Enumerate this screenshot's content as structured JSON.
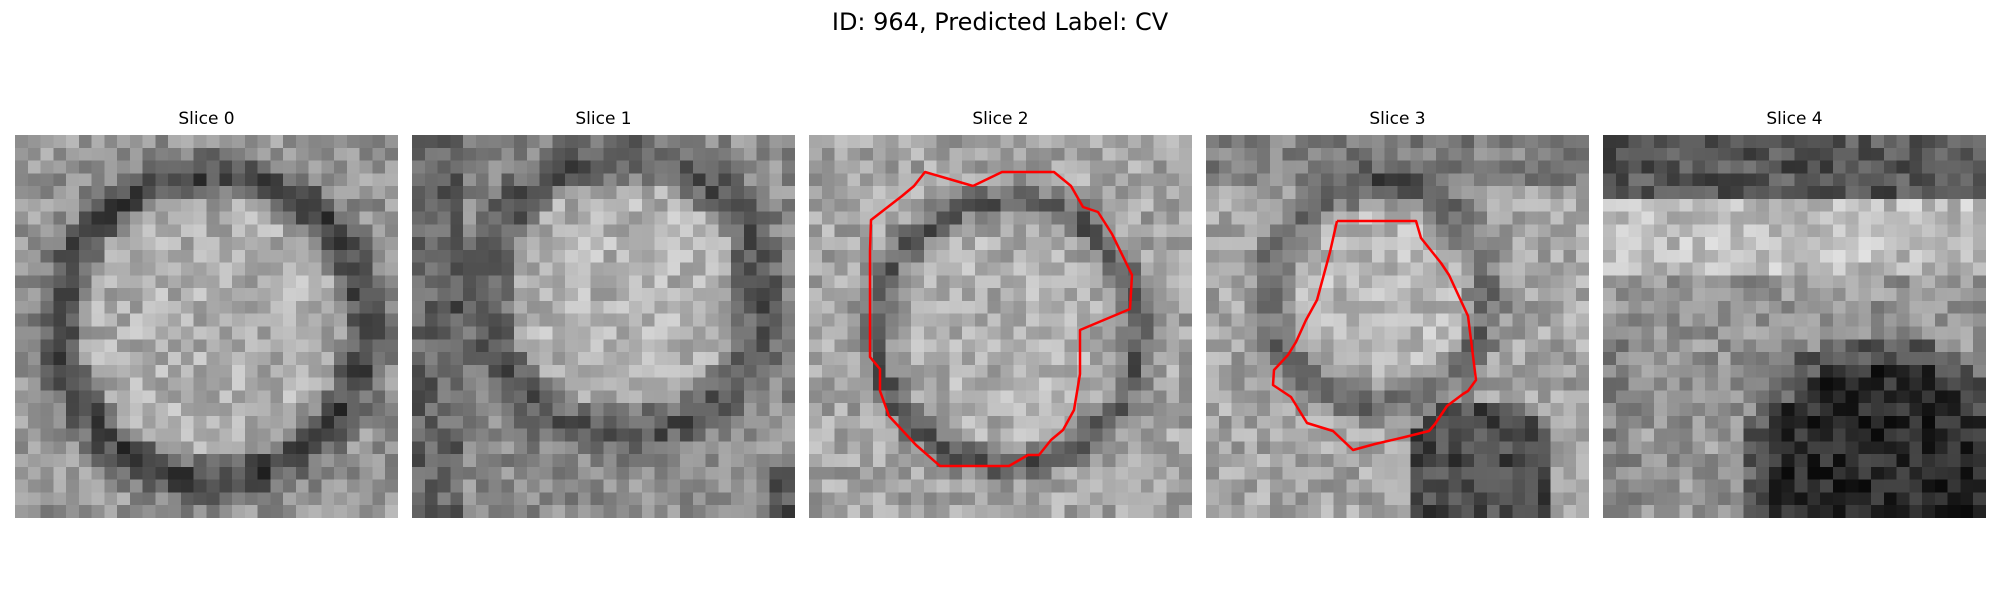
{
  "figure": {
    "title": "ID: 964, Predicted Label: CV"
  },
  "slices": [
    {
      "title": "Slice 0",
      "image": "grayscale-microscopy-slice",
      "has_contour": false
    },
    {
      "title": "Slice 1",
      "image": "grayscale-microscopy-slice",
      "has_contour": false
    },
    {
      "title": "Slice 2",
      "image": "grayscale-microscopy-slice",
      "has_contour": true
    },
    {
      "title": "Slice 3",
      "image": "grayscale-microscopy-slice",
      "has_contour": true
    },
    {
      "title": "Slice 4",
      "image": "grayscale-microscopy-slice",
      "has_contour": false
    }
  ],
  "colors": {
    "contour": "#ff0000",
    "background": "#ffffff"
  }
}
